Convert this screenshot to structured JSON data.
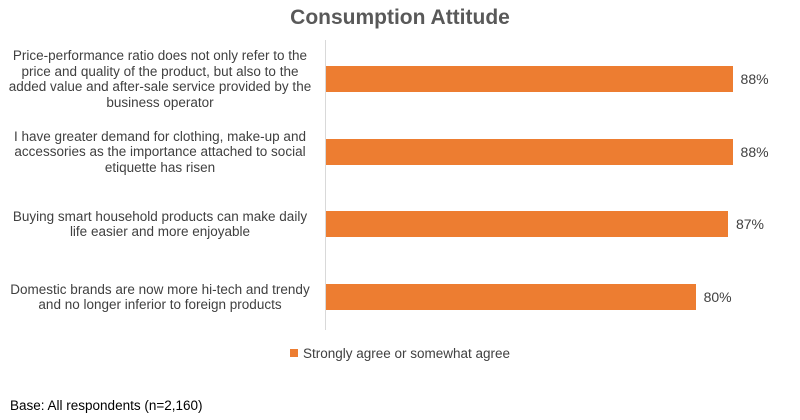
{
  "chart_data": {
    "type": "bar",
    "orientation": "horizontal",
    "title": "Consumption Attitude",
    "categories": [
      "Price-performance ratio does not only refer to the\nprice and quality of the product, but also to the\nadded value and after-sale service provided by the\nbusiness operator",
      "I have greater demand for clothing, make-up and\naccessories as the importance attached to social\netiquette has risen",
      "Buying smart household products can make daily\nlife easier and more enjoyable",
      "Domestic brands are now more hi-tech and trendy\nand no longer inferior to foreign products"
    ],
    "series": [
      {
        "name": "Strongly agree or somewhat agree",
        "values": [
          88,
          88,
          87,
          80
        ],
        "value_labels": [
          "88%",
          "88%",
          "87%",
          "80%"
        ],
        "color": "#ed7d31"
      }
    ],
    "xlim": [
      0,
      100
    ],
    "xlabel": "",
    "ylabel": "",
    "grid": false,
    "legend_position": "bottom"
  },
  "footnote": "Base: All respondents (n=2,160)"
}
